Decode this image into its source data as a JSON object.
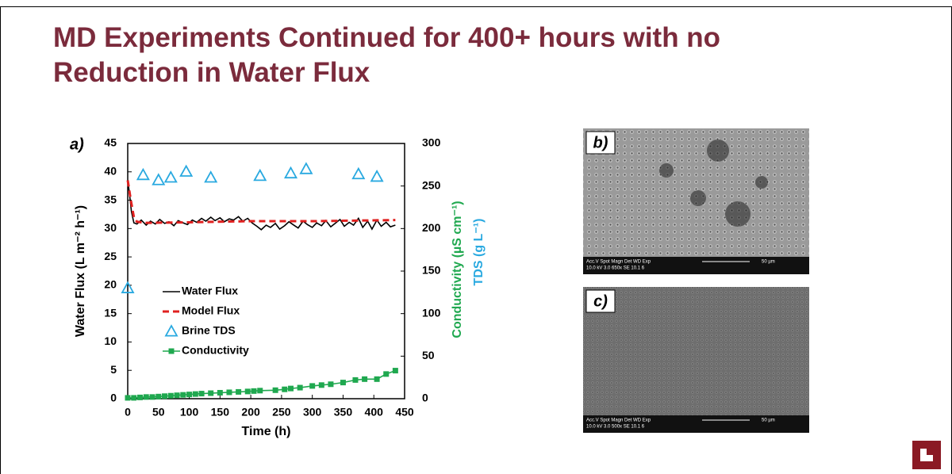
{
  "slide": {
    "title": "MD Experiments Continued for 400+ hours with no Reduction in Water Flux"
  },
  "chart_data": {
    "type": "line",
    "panel_label": "a)",
    "xlabel": "Time (h)",
    "ylabel": "Water Flux (L m⁻² h⁻¹)",
    "y2labels": [
      {
        "text": "Conductivity (µS cm⁻¹)",
        "color": "#1fa84f"
      },
      {
        "text": "TDS (g L⁻¹)",
        "color": "#29a9e0"
      }
    ],
    "xlim": [
      0,
      450
    ],
    "xticks": [
      0,
      50,
      100,
      150,
      200,
      250,
      300,
      350,
      400,
      450
    ],
    "ylim": [
      0,
      45
    ],
    "yticks": [
      0,
      5,
      10,
      15,
      20,
      25,
      30,
      35,
      40,
      45
    ],
    "y2lim": [
      0,
      300
    ],
    "y2ticks": [
      0,
      50,
      100,
      150,
      200,
      250,
      300
    ],
    "legend": "lower left",
    "series": [
      {
        "name": "Water Flux",
        "color": "#000000",
        "style": "solid",
        "marker": "none",
        "axis": "y",
        "x": [
          0,
          3,
          6,
          10,
          15,
          22,
          30,
          37,
          45,
          52,
          60,
          67,
          75,
          82,
          90,
          97,
          105,
          112,
          120,
          127,
          135,
          142,
          150,
          157,
          165,
          172,
          180,
          187,
          195,
          202,
          210,
          217,
          225,
          232,
          240,
          247,
          255,
          262,
          270,
          277,
          285,
          292,
          300,
          307,
          315,
          322,
          330,
          337,
          345,
          352,
          360,
          367,
          375,
          382,
          390,
          397,
          405,
          412,
          420,
          427,
          435
        ],
        "values": [
          38.5,
          36,
          33,
          31,
          30.8,
          31.5,
          30.6,
          31.3,
          30.8,
          31.6,
          30.9,
          31.2,
          30.5,
          31.4,
          31.0,
          30.7,
          31.5,
          31.1,
          31.8,
          31.3,
          32.0,
          31.4,
          31.9,
          31.2,
          31.7,
          31.5,
          32.1,
          31.3,
          31.8,
          31.0,
          30.4,
          29.8,
          30.6,
          30.2,
          30.9,
          29.9,
          30.5,
          31.2,
          30.6,
          30.1,
          31.3,
          30.7,
          30.2,
          31.0,
          30.5,
          31.4,
          30.3,
          30.9,
          31.6,
          30.4,
          31.1,
          30.6,
          31.8,
          30.2,
          31.3,
          29.9,
          31.5,
          30.4,
          31.1,
          30.3,
          30.6
        ]
      },
      {
        "name": "Model Flux",
        "color": "#e0201f",
        "style": "dashed",
        "marker": "none",
        "axis": "y",
        "x": [
          0,
          5,
          10,
          15,
          30,
          100,
          200,
          300,
          435
        ],
        "values": [
          38.5,
          35,
          32,
          31.2,
          31,
          31.1,
          31.3,
          31.3,
          31.5
        ]
      },
      {
        "name": "Brine TDS",
        "color": "#29a9e0",
        "style": "none",
        "marker": "triangle",
        "axis": "y2",
        "x": [
          0,
          25,
          50,
          70,
          95,
          135,
          215,
          265,
          290,
          375,
          405
        ],
        "values": [
          130,
          263,
          257,
          260,
          267,
          260,
          262,
          265,
          270,
          264,
          261
        ]
      },
      {
        "name": "Conductivity",
        "color": "#1fa84f",
        "style": "solid",
        "marker": "square",
        "axis": "y2",
        "x": [
          0,
          10,
          20,
          30,
          40,
          50,
          60,
          70,
          80,
          90,
          100,
          110,
          120,
          135,
          150,
          165,
          180,
          195,
          205,
          215,
          240,
          255,
          265,
          280,
          300,
          315,
          330,
          350,
          370,
          385,
          405,
          420,
          435
        ],
        "values": [
          1,
          1,
          1.5,
          2,
          2,
          2.5,
          3,
          3.5,
          4,
          4.5,
          5,
          5.5,
          6,
          6.5,
          7,
          7.5,
          8,
          8.5,
          9,
          9.5,
          10,
          11,
          12,
          13,
          15,
          16,
          17,
          19,
          22,
          23,
          23,
          29,
          33
        ]
      }
    ]
  },
  "images": [
    {
      "label": "b)",
      "scale_bar": "50 µm",
      "info": [
        "Acc.V   Spot Magn    Det  WD  Exp",
        "10.0 kV 3.0   650x     SE   10.1  6"
      ]
    },
    {
      "label": "c)",
      "scale_bar": "50 µm",
      "info": [
        "Acc.V   Spot Magn    Det  WD  Exp",
        "10.0 kV 3.0   500x     SE   10.1  6"
      ]
    }
  ]
}
